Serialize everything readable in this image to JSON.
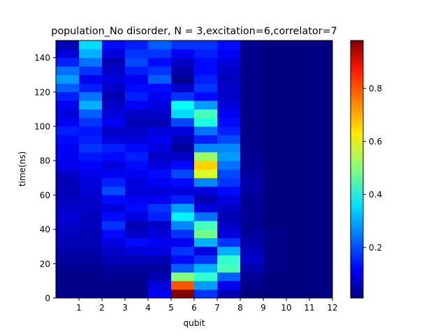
{
  "chart_data": {
    "type": "heatmap",
    "title": "population_No disorder, N =  3,excitation=6,correlator=7",
    "xlabel": "qubit",
    "ylabel": "time(ns)",
    "x_ticks": [
      "1",
      "2",
      "3",
      "4",
      "5",
      "6",
      "7",
      "8",
      "9",
      "10",
      "11",
      "12"
    ],
    "y_ticks": [
      "0",
      "20",
      "40",
      "60",
      "80",
      "100",
      "120",
      "140"
    ],
    "xlim": [
      0,
      12
    ],
    "ylim": [
      0,
      150
    ],
    "time_step_ns": 5,
    "colorbar": {
      "ticks": [
        "0.2",
        "0.4",
        "0.6",
        "0.8"
      ],
      "range": [
        0.01,
        0.98
      ],
      "colormap": "jet"
    },
    "columns": [
      {
        "qubit": 1,
        "values": [
          0.02,
          0.02,
          0.02,
          0.03,
          0.04,
          0.05,
          0.06,
          0.07,
          0.08,
          0.09,
          0.08,
          0.07,
          0.06,
          0.06,
          0.08,
          0.11,
          0.12,
          0.12,
          0.14,
          0.16,
          0.12,
          0.1,
          0.12,
          0.16,
          0.22,
          0.28,
          0.24,
          0.16,
          0.1,
          0.06
        ]
      },
      {
        "qubit": 2,
        "values": [
          0.02,
          0.02,
          0.02,
          0.03,
          0.04,
          0.05,
          0.06,
          0.06,
          0.07,
          0.07,
          0.08,
          0.08,
          0.09,
          0.1,
          0.11,
          0.13,
          0.15,
          0.18,
          0.16,
          0.15,
          0.18,
          0.22,
          0.3,
          0.24,
          0.16,
          0.12,
          0.18,
          0.24,
          0.3,
          0.34
        ]
      },
      {
        "qubit": 3,
        "values": [
          0.02,
          0.02,
          0.03,
          0.04,
          0.06,
          0.08,
          0.1,
          0.14,
          0.18,
          0.14,
          0.1,
          0.14,
          0.2,
          0.16,
          0.12,
          0.1,
          0.14,
          0.16,
          0.1,
          0.08,
          0.12,
          0.1,
          0.08,
          0.06,
          0.08,
          0.1,
          0.08,
          0.06,
          0.1,
          0.14
        ]
      },
      {
        "qubit": 4,
        "values": [
          0.02,
          0.02,
          0.03,
          0.04,
          0.06,
          0.1,
          0.14,
          0.08,
          0.06,
          0.1,
          0.14,
          0.12,
          0.1,
          0.1,
          0.12,
          0.14,
          0.16,
          0.14,
          0.1,
          0.08,
          0.06,
          0.08,
          0.12,
          0.16,
          0.14,
          0.12,
          0.16,
          0.2,
          0.18,
          0.16
        ]
      },
      {
        "qubit": 5,
        "values": [
          0.12,
          0.1,
          0.06,
          0.04,
          0.06,
          0.1,
          0.12,
          0.1,
          0.08,
          0.16,
          0.18,
          0.12,
          0.1,
          0.12,
          0.14,
          0.1,
          0.08,
          0.1,
          0.12,
          0.1,
          0.06,
          0.08,
          0.1,
          0.12,
          0.14,
          0.22,
          0.18,
          0.14,
          0.18,
          0.22
        ]
      },
      {
        "qubit": 6,
        "values": [
          0.98,
          0.78,
          0.5,
          0.22,
          0.14,
          0.18,
          0.12,
          0.18,
          0.26,
          0.36,
          0.28,
          0.16,
          0.1,
          0.14,
          0.2,
          0.14,
          0.08,
          0.04,
          0.06,
          0.1,
          0.2,
          0.34,
          0.38,
          0.18,
          0.08,
          0.03,
          0.05,
          0.08,
          0.12,
          0.18
        ]
      },
      {
        "qubit": 7,
        "values": [
          0.18,
          0.28,
          0.42,
          0.3,
          0.18,
          0.1,
          0.3,
          0.48,
          0.44,
          0.24,
          0.1,
          0.06,
          0.1,
          0.26,
          0.58,
          0.66,
          0.52,
          0.26,
          0.16,
          0.24,
          0.4,
          0.44,
          0.28,
          0.14,
          0.18,
          0.16,
          0.14,
          0.14,
          0.16,
          0.18
        ]
      },
      {
        "qubit": 8,
        "values": [
          0.06,
          0.12,
          0.22,
          0.44,
          0.42,
          0.3,
          0.18,
          0.1,
          0.08,
          0.06,
          0.08,
          0.1,
          0.14,
          0.18,
          0.2,
          0.24,
          0.28,
          0.26,
          0.2,
          0.16,
          0.14,
          0.12,
          0.1,
          0.08,
          0.08,
          0.07,
          0.08,
          0.1,
          0.12,
          0.14
        ]
      },
      {
        "qubit": 9,
        "values": [
          0.01,
          0.02,
          0.03,
          0.05,
          0.08,
          0.07,
          0.05,
          0.04,
          0.03,
          0.03,
          0.03,
          0.03,
          0.04,
          0.05,
          0.04,
          0.03,
          0.03,
          0.02,
          0.02,
          0.02,
          0.02,
          0.02,
          0.02,
          0.02,
          0.02,
          0.02,
          0.02,
          0.02,
          0.02,
          0.02
        ]
      },
      {
        "qubit": 10,
        "values": [
          0.01,
          0.01,
          0.01,
          0.02,
          0.02,
          0.02,
          0.02,
          0.02,
          0.01,
          0.01,
          0.01,
          0.01,
          0.01,
          0.01,
          0.01,
          0.01,
          0.01,
          0.01,
          0.01,
          0.01,
          0.01,
          0.01,
          0.01,
          0.01,
          0.01,
          0.01,
          0.01,
          0.01,
          0.01,
          0.01
        ]
      },
      {
        "qubit": 11,
        "values": [
          0.01,
          0.01,
          0.01,
          0.01,
          0.01,
          0.01,
          0.01,
          0.01,
          0.01,
          0.01,
          0.01,
          0.01,
          0.01,
          0.01,
          0.01,
          0.01,
          0.01,
          0.01,
          0.01,
          0.01,
          0.01,
          0.01,
          0.01,
          0.01,
          0.01,
          0.01,
          0.01,
          0.01,
          0.01,
          0.01
        ]
      },
      {
        "qubit": 12,
        "values": [
          0.01,
          0.01,
          0.01,
          0.01,
          0.01,
          0.01,
          0.01,
          0.01,
          0.01,
          0.01,
          0.01,
          0.01,
          0.01,
          0.01,
          0.01,
          0.01,
          0.01,
          0.01,
          0.01,
          0.01,
          0.01,
          0.01,
          0.01,
          0.01,
          0.01,
          0.01,
          0.01,
          0.01,
          0.01,
          0.01
        ]
      }
    ]
  }
}
